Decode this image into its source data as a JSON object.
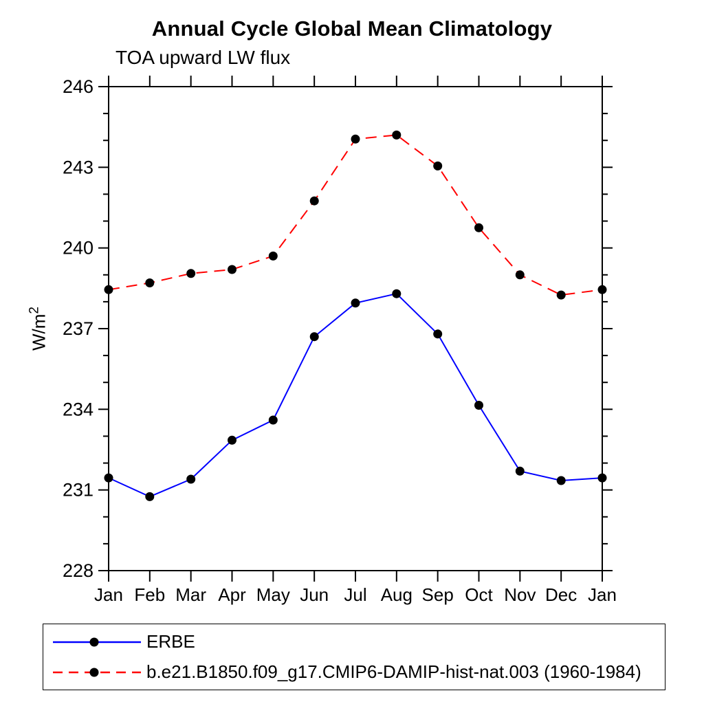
{
  "page": {
    "background": "#ffffff",
    "foreground": "#000000"
  },
  "chart_data": {
    "type": "line",
    "title": "Annual Cycle Global Mean Climatology",
    "subtitle": "TOA upward LW flux",
    "ylabel": "W/m²",
    "ylabel_base": "W/m",
    "ylabel_sup": "2",
    "categories": [
      "Jan",
      "Feb",
      "Mar",
      "Apr",
      "May",
      "Jun",
      "Jul",
      "Aug",
      "Sep",
      "Oct",
      "Nov",
      "Dec",
      "Jan"
    ],
    "series": [
      {
        "name": "ERBE",
        "color": "#0000ff",
        "line_style": "solid",
        "marker": "filled-circle",
        "marker_color": "#000000",
        "values": [
          231.45,
          230.75,
          231.4,
          232.85,
          233.6,
          236.7,
          237.95,
          238.3,
          236.8,
          234.15,
          231.7,
          231.35,
          231.45
        ]
      },
      {
        "name": "b.e21.B1850.f09_g17.CMIP6-DAMIP-hist-nat.003 (1960-1984)",
        "color": "#ff0000",
        "line_style": "dashed",
        "marker": "filled-circle",
        "marker_color": "#000000",
        "values": [
          238.45,
          238.7,
          239.05,
          239.2,
          239.7,
          241.75,
          244.05,
          244.2,
          243.05,
          240.75,
          239.0,
          238.25,
          238.45
        ]
      }
    ],
    "ylim": [
      228,
      246
    ],
    "yticks_major": [
      228,
      231,
      234,
      237,
      240,
      243,
      246
    ],
    "ytick_minor_step": 1,
    "grid": false,
    "legend_position": "bottom",
    "axis_ticks": "outward-all-sides"
  }
}
